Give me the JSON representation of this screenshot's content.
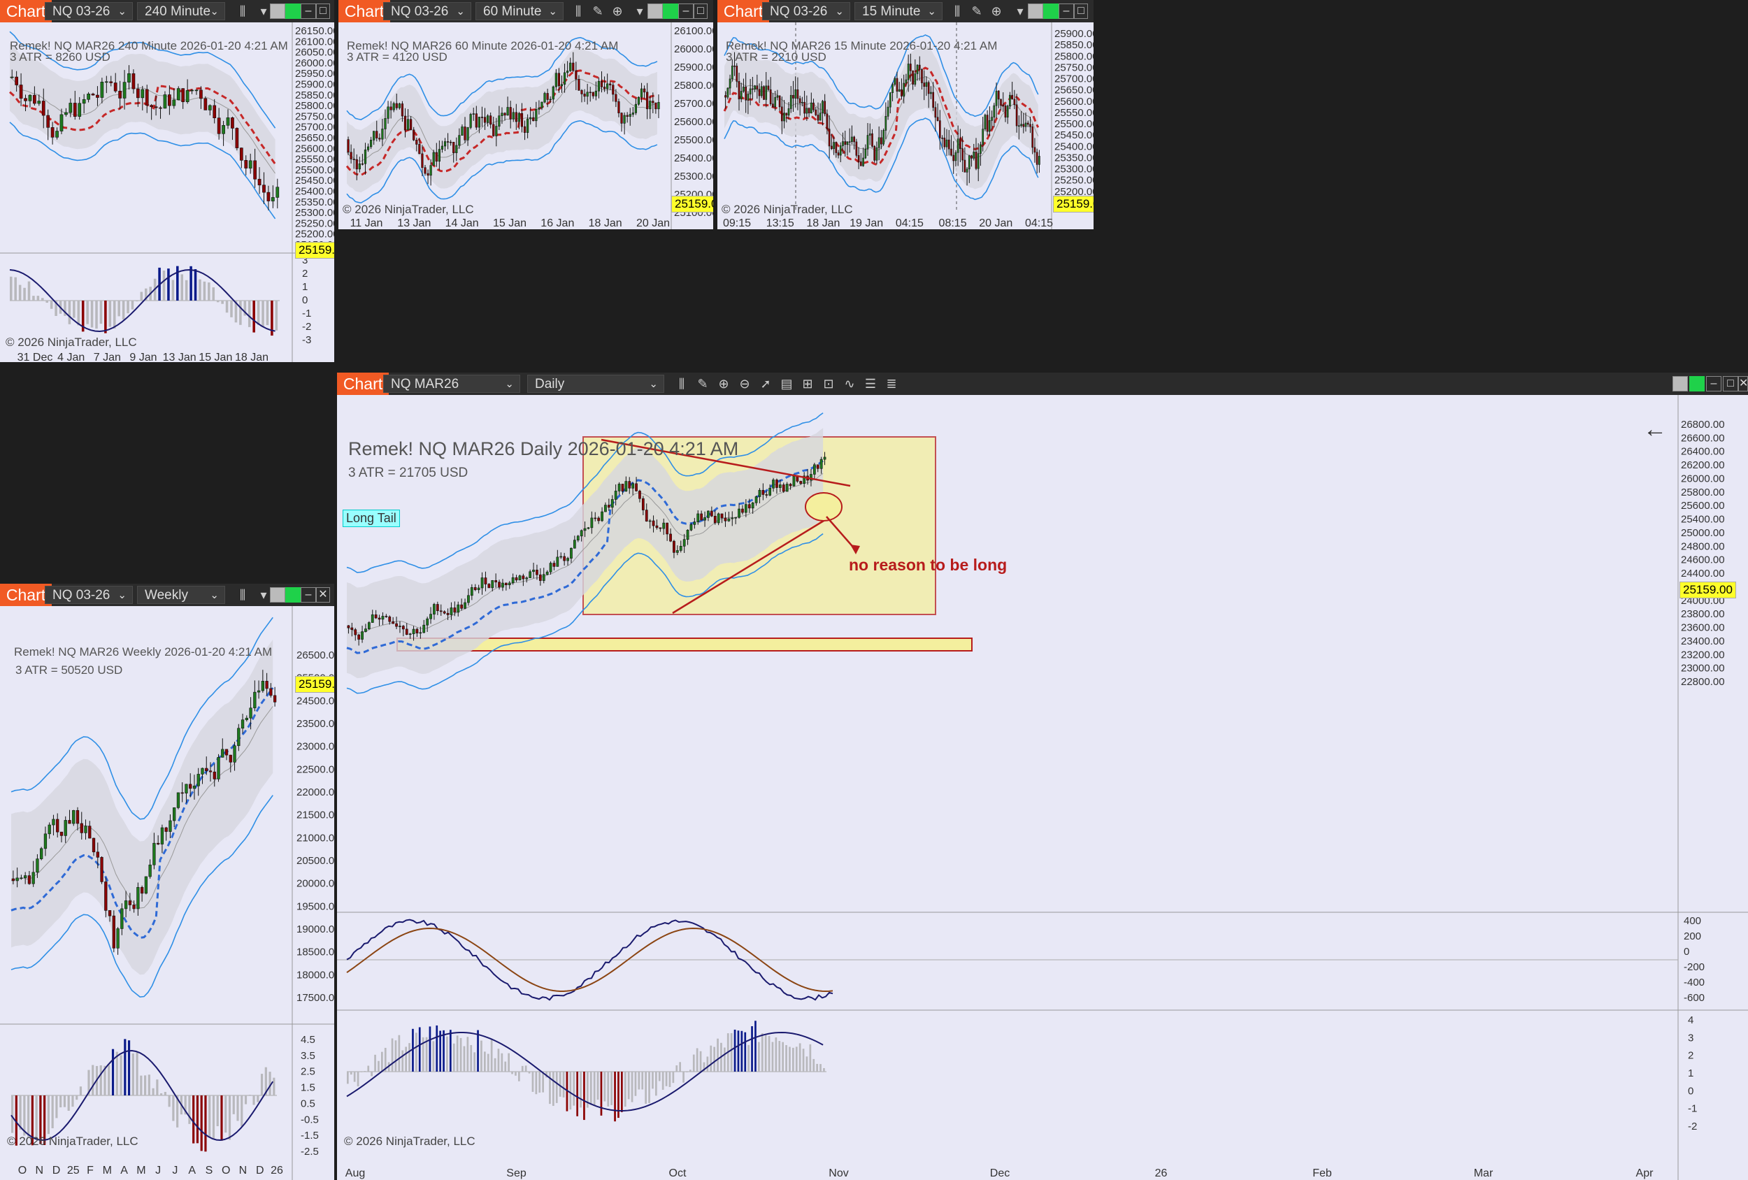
{
  "app": {
    "chart_tab": "Chart",
    "vendor_copyright": "© 2026 NinjaTrader, LLC"
  },
  "colors": {
    "accent": "#f15a24",
    "bg": "#e8e8f6",
    "price_tag": "#ffff2a",
    "bull": "#1e7a1e",
    "bear": "#8b0000",
    "band": "#2f8fe6"
  },
  "icons": [
    "bar-style-icon",
    "draw-tool-icon",
    "zoom-in-icon",
    "zoom-out-icon",
    "pointer-icon",
    "data-box-icon",
    "properties-icon",
    "indicators-icon",
    "strategies-icon",
    "chart-trader-icon",
    "list-icon",
    "minimize-icon",
    "maximize-icon",
    "close-icon",
    "back-arrow-icon"
  ],
  "windows": {
    "w240": {
      "instrument": "NQ 03-26",
      "interval": "240 Minute",
      "header": "Remek!  NQ MAR26  240 Minute  2026-01-20 4:21 AM",
      "atr": "3 ATR = 8260 USD",
      "last_price": "25159.00",
      "price_ticks": [
        "26150.00",
        "26100.00",
        "26050.00",
        "26000.00",
        "25950.00",
        "25900.00",
        "25850.00",
        "25800.00",
        "25750.00",
        "25700.00",
        "25650.00",
        "25600.00",
        "25550.00",
        "25500.00",
        "25450.00",
        "25400.00",
        "25350.00",
        "25300.00",
        "25250.00",
        "25200.00",
        "25150.00"
      ],
      "osc_ticks": [
        "3",
        "2",
        "1",
        "0",
        "-1",
        "-2",
        "-3"
      ],
      "time_ticks": [
        "31 Dec",
        "4 Jan",
        "7 Jan",
        "9 Jan",
        "13 Jan",
        "15 Jan",
        "18 Jan"
      ]
    },
    "w60": {
      "instrument": "NQ 03-26",
      "interval": "60 Minute",
      "header": "Remek!  NQ MAR26  60 Minute  2026-01-20 4:21 AM",
      "atr": "3 ATR = 4120 USD",
      "last_price": "25159.00",
      "price_ticks": [
        "26100.00",
        "26000.00",
        "25900.00",
        "25800.00",
        "25700.00",
        "25600.00",
        "25500.00",
        "25400.00",
        "25300.00",
        "25200.00",
        "25100.00"
      ],
      "time_ticks": [
        "11 Jan",
        "13 Jan",
        "14 Jan",
        "15 Jan",
        "16 Jan",
        "18 Jan",
        "20 Jan"
      ]
    },
    "w15": {
      "instrument": "NQ 03-26",
      "interval": "15 Minute",
      "header": "Remek!  NQ MAR26  15 Minute  2026-01-20 4:21 AM",
      "atr": "3 ATR = 2210 USD",
      "last_price": "25159.00",
      "price_ticks": [
        "25900.00",
        "25850.00",
        "25800.00",
        "25750.00",
        "25700.00",
        "25650.00",
        "25600.00",
        "25550.00",
        "25500.00",
        "25450.00",
        "25400.00",
        "25350.00",
        "25300.00",
        "25250.00",
        "25200.00",
        "25150.00"
      ],
      "time_ticks": [
        "09:15",
        "13:15",
        "18 Jan",
        "19 Jan",
        "04:15",
        "08:15",
        "20 Jan",
        "04:15"
      ]
    },
    "wweekly": {
      "instrument": "NQ 03-26",
      "interval": "Weekly",
      "header": "Remek!  NQ MAR26  Weekly  2026-01-20 4:21 AM",
      "atr": "3 ATR = 50520 USD",
      "last_price": "25159.00",
      "price_ticks": [
        "26500.00",
        "25500.00",
        "24500.00",
        "23500.00",
        "23000.00",
        "22500.00",
        "22000.00",
        "21500.00",
        "21000.00",
        "20500.00",
        "20000.00",
        "19500.00",
        "19000.00",
        "18500.00",
        "18000.00",
        "17500.00"
      ],
      "osc_ticks": [
        "4.5",
        "3.5",
        "2.5",
        "1.5",
        "0.5",
        "-0.5",
        "-1.5",
        "-2.5"
      ],
      "time_ticks": [
        "O",
        "N",
        "D",
        "25",
        "F",
        "M",
        "A",
        "M",
        "J",
        "J",
        "A",
        "S",
        "O",
        "N",
        "D",
        "26"
      ]
    },
    "wdaily": {
      "instrument": "NQ MAR26",
      "interval": "Daily",
      "header": "Remek!  NQ MAR26  Daily  2026-01-20 4:21 AM",
      "atr": "3 ATR = 21705 USD",
      "last_price": "25159.00",
      "long_tail": "Long Tail",
      "annotation": "no reason to be long",
      "price_ticks": [
        "26800.00",
        "26600.00",
        "26400.00",
        "26200.00",
        "26000.00",
        "25800.00",
        "25600.00",
        "25400.00",
        "25000.00",
        "24800.00",
        "24600.00",
        "24400.00",
        "24200.00",
        "24000.00",
        "23800.00",
        "23600.00",
        "23400.00",
        "23200.00",
        "23000.00",
        "22800.00"
      ],
      "osc1_ticks": [
        "400",
        "200",
        "0",
        "-200",
        "-400",
        "-600"
      ],
      "osc2_ticks": [
        "4",
        "3",
        "2",
        "1",
        "0",
        "-1",
        "-2"
      ],
      "time_ticks": [
        "Aug",
        "Sep",
        "Oct",
        "Nov",
        "Dec",
        "26",
        "Feb",
        "Mar",
        "Apr"
      ]
    }
  }
}
